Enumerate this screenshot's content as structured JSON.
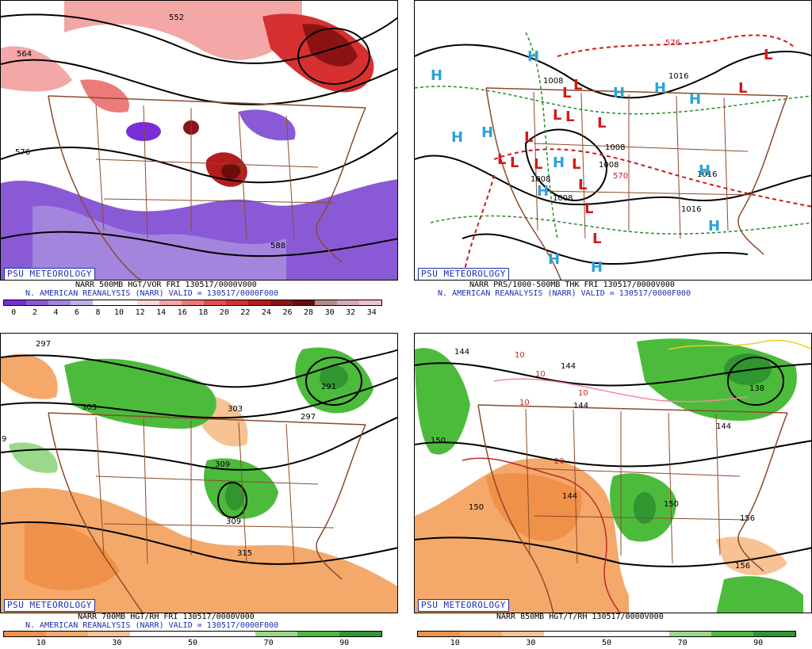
{
  "brand": "PSU METEOROLOGY",
  "panels": [
    {
      "title1": "NARR 500MB HGT/VOR FRI 130517/0000V000",
      "title2": "N. AMERICAN REANALYSIS (NARR) VALID = 130517/0000F000",
      "contours": [
        "552",
        "564",
        "576",
        "588"
      ],
      "colorbar": {
        "colors": [
          "#7a2cd9",
          "#8a5ad6",
          "#a385de",
          "#c4b0e8",
          "#ffffff",
          "#ffffff",
          "#fcd7d7",
          "#f4a7a7",
          "#ed7b7b",
          "#e24e4e",
          "#d63030",
          "#b31d1d",
          "#8c1313",
          "#6b0d0d",
          "#b98a8a",
          "#d9a9b6",
          "#f4c1cd"
        ],
        "ticks": [
          "0",
          "2",
          "4",
          "6",
          "8",
          "10",
          "12",
          "14",
          "16",
          "18",
          "20",
          "22",
          "24",
          "26",
          "28",
          "30",
          "32",
          "34"
        ]
      }
    },
    {
      "title1": "NARR PRS/1000-500MB THK FRI 130517/0000V000",
      "title2": "N. AMERICAN REANALYSIS (NARR) VALID = 130517/0000F000",
      "labels": [
        "1008",
        "1008",
        "1016",
        "1008",
        "1008",
        "1008",
        "1016",
        "1016",
        "570",
        "576"
      ],
      "highs": [
        "H",
        "H",
        "H",
        "H",
        "H",
        "H",
        "H",
        "H",
        "H",
        "H",
        "H",
        "H",
        "H"
      ],
      "lows": [
        "L",
        "L",
        "L",
        "L",
        "L",
        "L",
        "L",
        "L",
        "L",
        "L",
        "L",
        "L",
        "L",
        "L",
        "L"
      ]
    },
    {
      "title1": "NARR 700MB HGT/RH FRI 130517/0000V000",
      "title2": "N. AMERICAN REANALYSIS (NARR) VALID = 130517/0000F000",
      "contours": [
        "297",
        "291",
        "303",
        "303",
        "297",
        "309",
        "309",
        "315",
        "9"
      ],
      "colorbar": {
        "colors": [
          "#f0914a",
          "#f4a96a",
          "#f8c394",
          "#ffffff",
          "#ffffff",
          "#ffffff",
          "#9ad98a",
          "#4cbb3c",
          "#2f9630"
        ],
        "ticks": [
          "10",
          "30",
          "50",
          "70",
          "90"
        ]
      }
    },
    {
      "title1": "NARR 850MB HGT/T/RH 130517/0000V000",
      "contours": [
        "144",
        "144",
        "144",
        "144",
        "150",
        "150",
        "156",
        "150",
        "138",
        "144",
        "156"
      ],
      "temps": [
        "10",
        "10",
        "10",
        "10",
        "20"
      ],
      "colorbar": {
        "colors": [
          "#f0914a",
          "#f4a96a",
          "#f8c394",
          "#ffffff",
          "#ffffff",
          "#ffffff",
          "#9ad98a",
          "#4cbb3c",
          "#2f9630"
        ],
        "ticks": [
          "10",
          "30",
          "50",
          "70",
          "90"
        ]
      }
    }
  ]
}
